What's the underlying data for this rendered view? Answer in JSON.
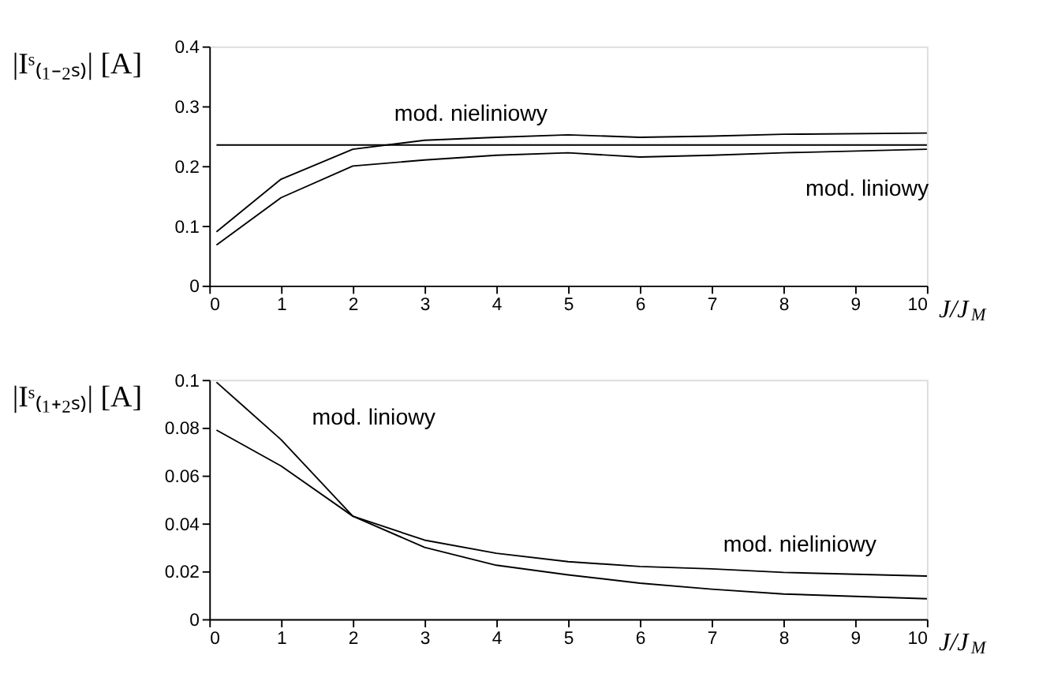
{
  "chart_data": [
    {
      "type": "line",
      "ylabel": "|Iˢ₍₁₋₂ₛ₎| [A]",
      "xlabel": "J/J$_{M}$",
      "xlim": [
        0,
        10
      ],
      "xticks": [
        0,
        1,
        2,
        3,
        4,
        5,
        6,
        7,
        8,
        9,
        10
      ],
      "ylim": [
        0,
        0.4
      ],
      "yticks": [
        0,
        0.1,
        0.2,
        0.3,
        0.4
      ],
      "grid": false,
      "marker": "none",
      "line_style": "solid",
      "series": [
        {
          "color": "#000000",
          "x": [
            0.1,
            1,
            2,
            3,
            4,
            5,
            6,
            7,
            8,
            10
          ],
          "values": [
            0.09,
            0.178,
            0.228,
            0.243,
            0.248,
            0.252,
            0.248,
            0.25,
            0.253,
            0.255
          ]
        },
        {
          "color": "#000000",
          "x": [
            0.1,
            1,
            2,
            3,
            4,
            5,
            6,
            7,
            8,
            10
          ],
          "values": [
            0.068,
            0.147,
            0.2,
            0.21,
            0.218,
            0.222,
            0.215,
            0.218,
            0.222,
            0.228
          ]
        },
        {
          "color": "#000000",
          "x": [
            0.1,
            10
          ],
          "values": [
            0.235,
            0.235
          ]
        }
      ],
      "annotations": [
        "mod. nieliniowy",
        "mod. liniowy"
      ]
    },
    {
      "type": "line",
      "ylabel": "|Iˢ₍₁₊₂ₛ₎| [A]",
      "xlabel": "J/J$_{M}$",
      "xlim": [
        0,
        10
      ],
      "xticks": [
        0,
        1,
        2,
        3,
        4,
        5,
        6,
        7,
        8,
        9,
        10
      ],
      "ylim": [
        0,
        0.1
      ],
      "yticks": [
        0,
        0.02,
        0.04,
        0.06,
        0.08,
        0.1
      ],
      "grid": false,
      "marker": "none",
      "line_style": "solid",
      "series": [
        {
          "color": "#000000",
          "x": [
            0.1,
            1,
            2,
            3,
            4,
            5,
            6,
            7,
            8,
            9,
            10
          ],
          "values": [
            0.099,
            0.075,
            0.043,
            0.03,
            0.0225,
            0.0185,
            0.015,
            0.0125,
            0.0105,
            0.0095,
            0.0085
          ]
        },
        {
          "color": "#000000",
          "x": [
            0.1,
            1,
            2,
            3,
            4,
            5,
            6,
            7,
            8,
            10
          ],
          "values": [
            0.079,
            0.064,
            0.043,
            0.033,
            0.0275,
            0.024,
            0.022,
            0.021,
            0.0195,
            0.018
          ]
        }
      ],
      "annotations": [
        "mod. liniowy",
        "mod. nieliniowy"
      ]
    }
  ]
}
